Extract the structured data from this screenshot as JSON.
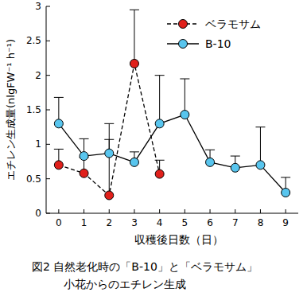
{
  "chart_data": {
    "type": "line",
    "caption": [
      "図2 自然老化時の「B-10」と「ベラモサム」",
      "小花からのエチレン生成"
    ],
    "x_label": "収穫後日数（日）",
    "y_label": "エチレン生成量(nlgFW⁻¹ h⁻¹)",
    "xlim": [
      -0.5,
      9.5
    ],
    "xticks": [
      0,
      1,
      2,
      3,
      4,
      5,
      6,
      7,
      8,
      9
    ],
    "ylim": [
      0,
      3
    ],
    "yticks": [
      0,
      0.5,
      1,
      1.5,
      2,
      2.5,
      3
    ],
    "legend": "top-right",
    "grid": false,
    "series": [
      {
        "name": "ベラモサム",
        "color": "#e0201b",
        "marker": "circle",
        "line_style": "dashed",
        "x": [
          0,
          1,
          2,
          3,
          4
        ],
        "values": [
          0.7,
          0.58,
          0.26,
          2.17,
          0.57
        ],
        "errors": [
          0.23,
          0.23,
          1.04,
          0.78,
          0.2
        ]
      },
      {
        "name": "B-10",
        "color": "#58c5ee",
        "marker": "circle",
        "line_style": "solid",
        "x": [
          0,
          1,
          2,
          3,
          4,
          5,
          6,
          7,
          8,
          9
        ],
        "values": [
          1.3,
          0.83,
          0.87,
          0.74,
          1.3,
          1.43,
          0.74,
          0.66,
          0.7,
          0.3
        ],
        "errors": [
          0.38,
          0.25,
          0.2,
          0.15,
          0.7,
          0.52,
          0.18,
          0.17,
          0.55,
          0.22
        ]
      }
    ]
  }
}
